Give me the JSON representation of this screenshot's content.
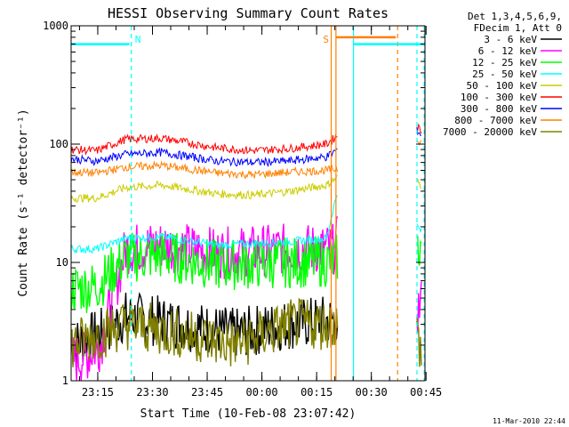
{
  "chart_data": {
    "type": "line",
    "title": "HESSI Observing Summary Count Rates",
    "xlabel": "Start Time (10-Feb-08 23:07:42)",
    "ylabel": "Count Rate (s⁻¹ detector⁻¹)",
    "x_unit": "minutes after 23:07:42",
    "xlim": [
      0,
      97
    ],
    "ylim": [
      1,
      1000
    ],
    "yscale": "log",
    "x_ticks": [
      {
        "x": 7.3,
        "label": "23:15"
      },
      {
        "x": 22.3,
        "label": "23:30"
      },
      {
        "x": 37.3,
        "label": "23:45"
      },
      {
        "x": 52.3,
        "label": "00:00"
      },
      {
        "x": 67.3,
        "label": "00:15"
      },
      {
        "x": 82.3,
        "label": "00:30"
      },
      {
        "x": 97.3,
        "label": "00:45"
      }
    ],
    "y_ticks": [
      {
        "y": 1,
        "label": "1"
      },
      {
        "y": 10,
        "label": "10"
      },
      {
        "y": 100,
        "label": "100"
      },
      {
        "y": 1000,
        "label": "1000"
      }
    ],
    "legend_header": [
      "Det 1,3,4,5,6,9,",
      "FDecim 1, Att 0"
    ],
    "legend_position": "right",
    "series": [
      {
        "name": "3 - 6 keV",
        "color": "#000000",
        "points": [
          [
            0,
            2.0
          ],
          [
            8,
            2.5
          ],
          [
            15,
            3.5
          ],
          [
            30,
            3.0
          ],
          [
            45,
            2.5
          ],
          [
            60,
            3.0
          ],
          [
            73,
            3.3
          ]
        ]
      },
      {
        "name": "6 - 12 keV",
        "color": "#ff00ff",
        "points": [
          [
            0,
            1.5
          ],
          [
            4,
            1.6
          ],
          [
            8,
            2.0
          ],
          [
            15,
            13
          ],
          [
            25,
            14
          ],
          [
            40,
            12
          ],
          [
            60,
            13
          ],
          [
            72,
            13
          ],
          [
            73,
            15
          ],
          [
            95,
            4
          ],
          [
            96,
            4.5
          ]
        ]
      },
      {
        "name": "12 - 25 keV",
        "color": "#00ff00",
        "points": [
          [
            0,
            6
          ],
          [
            7,
            6.3
          ],
          [
            15,
            11
          ],
          [
            25,
            11.5
          ],
          [
            40,
            9.5
          ],
          [
            60,
            10
          ],
          [
            72,
            10.2
          ],
          [
            73,
            11
          ],
          [
            95,
            13
          ],
          [
            96,
            14
          ]
        ]
      },
      {
        "name": "25 - 50 keV",
        "color": "#00ffff",
        "points": [
          [
            0,
            13
          ],
          [
            7,
            13
          ],
          [
            15,
            16
          ],
          [
            25,
            16.5
          ],
          [
            40,
            14
          ],
          [
            60,
            15
          ],
          [
            70,
            16
          ],
          [
            73,
            40
          ],
          [
            95,
            20
          ],
          [
            96,
            18
          ]
        ]
      },
      {
        "name": "50 - 100 keV",
        "color": "#cccc00",
        "points": [
          [
            0,
            35
          ],
          [
            7,
            35
          ],
          [
            15,
            43
          ],
          [
            25,
            45
          ],
          [
            40,
            38
          ],
          [
            50,
            37
          ],
          [
            60,
            40
          ],
          [
            70,
            45
          ],
          [
            73,
            52
          ],
          [
            95,
            48
          ],
          [
            96,
            45
          ]
        ]
      },
      {
        "name": "100 - 300 keV",
        "color": "#ff0000",
        "points": [
          [
            0,
            90
          ],
          [
            7,
            88
          ],
          [
            15,
            110
          ],
          [
            25,
            112
          ],
          [
            40,
            93
          ],
          [
            50,
            88
          ],
          [
            60,
            92
          ],
          [
            70,
            100
          ],
          [
            73,
            118
          ],
          [
            95,
            140
          ],
          [
            96,
            130
          ]
        ]
      },
      {
        "name": "300 - 800 keV",
        "color": "#0000ff",
        "points": [
          [
            0,
            75
          ],
          [
            7,
            72
          ],
          [
            15,
            82
          ],
          [
            25,
            85
          ],
          [
            40,
            72
          ],
          [
            50,
            70
          ],
          [
            60,
            72
          ],
          [
            70,
            78
          ],
          [
            73,
            90
          ],
          [
            95,
            130
          ],
          [
            96,
            120
          ]
        ]
      },
      {
        "name": "800 - 7000 keV",
        "color": "#ff8000",
        "points": [
          [
            0,
            58
          ],
          [
            7,
            57
          ],
          [
            15,
            64
          ],
          [
            25,
            66
          ],
          [
            40,
            57
          ],
          [
            50,
            55
          ],
          [
            60,
            58
          ],
          [
            70,
            60
          ],
          [
            73,
            62
          ],
          [
            95,
            110
          ],
          [
            96,
            105
          ]
        ]
      },
      {
        "name": "7000 - 20000 keV",
        "color": "#808000",
        "points": [
          [
            0,
            2.0
          ],
          [
            8,
            2.5
          ],
          [
            15,
            3.0
          ],
          [
            30,
            2.5
          ],
          [
            45,
            2.0
          ],
          [
            60,
            3.0
          ],
          [
            73,
            3.0
          ],
          [
            95,
            2.5
          ],
          [
            96,
            1.6
          ]
        ]
      }
    ],
    "annotations": [
      {
        "text": "N",
        "color": "#00ffff",
        "x": 16.5
      },
      {
        "text": "S",
        "color": "#ff8000",
        "x": 71
      }
    ],
    "flag_bars": [
      {
        "color": "#00ffff",
        "x_start": 0,
        "x_end": 16,
        "y": 700
      },
      {
        "color": "#ff8000",
        "x_start": 72.5,
        "x_end": 89,
        "y": 800
      },
      {
        "color": "#00ffff",
        "x_start": 77.5,
        "x_end": 96.5,
        "y": 700
      }
    ],
    "vlines": [
      {
        "color": "#00ffff",
        "style": "dashed",
        "x": 16.5
      },
      {
        "color": "#ff8000",
        "style": "solid",
        "x": 71.3
      },
      {
        "color": "#ff8000",
        "style": "solid",
        "x": 72.6
      },
      {
        "color": "#00ffff",
        "style": "solid",
        "x": 77.4
      },
      {
        "color": "#ff8000",
        "style": "dashed",
        "x": 89.5
      },
      {
        "color": "#00ffff",
        "style": "dashed",
        "x": 94.8
      },
      {
        "color": "#00ffff",
        "style": "dashed",
        "x": 96.8
      }
    ],
    "timestamp": "11-Mar-2010 22:44"
  }
}
